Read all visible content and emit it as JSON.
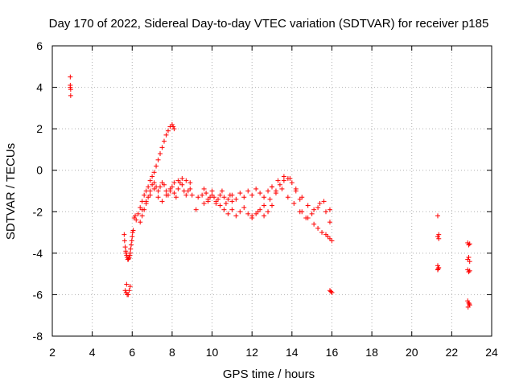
{
  "chart_data": {
    "type": "scatter",
    "title": "Day 170 of 2022, Sidereal Day-to-day VTEC variation (SDTVAR) for receiver p185",
    "xlabel": "GPS time / hours",
    "ylabel": "SDTVAR / TECUs",
    "xlim": [
      2,
      24
    ],
    "ylim": [
      -8,
      6
    ],
    "xticks": [
      2,
      4,
      6,
      8,
      10,
      12,
      14,
      16,
      18,
      20,
      22,
      24
    ],
    "yticks": [
      -8,
      -6,
      -4,
      -2,
      0,
      2,
      4,
      6
    ],
    "grid": true,
    "marker": "+",
    "color": "#ff0000",
    "series": [
      {
        "x": [
          2.9,
          2.9,
          2.9,
          2.92,
          2.92,
          5.6,
          5.62,
          5.65,
          5.68,
          5.7,
          5.72,
          5.75,
          5.78,
          5.8,
          5.82,
          5.85,
          5.88,
          5.9,
          5.92,
          5.95,
          5.98,
          6.0,
          6.02,
          6.05,
          5.7,
          5.75,
          5.8,
          5.85,
          5.9,
          5.65,
          5.72,
          6.1,
          6.15,
          6.2,
          6.3,
          6.4,
          6.5,
          6.6,
          6.7,
          6.8,
          6.9,
          7.0,
          7.1,
          7.2,
          7.3,
          7.4,
          7.5,
          7.6,
          7.7,
          7.8,
          7.9,
          8.0,
          8.05,
          8.1,
          6.4,
          6.5,
          6.6,
          6.7,
          6.8,
          6.9,
          7.0,
          7.1,
          7.2,
          7.3,
          7.4,
          7.5,
          7.6,
          7.7,
          7.8,
          7.9,
          8.0,
          8.1,
          8.2,
          8.3,
          8.4,
          8.5,
          8.6,
          8.7,
          8.8,
          8.9,
          6.5,
          6.7,
          6.9,
          7.1,
          7.3,
          7.5,
          7.7,
          7.9,
          8.1,
          8.3,
          8.5,
          8.7,
          8.9,
          9.0,
          9.2,
          9.3,
          9.5,
          9.6,
          9.7,
          9.8,
          9.9,
          10.0,
          10.1,
          10.2,
          10.3,
          10.4,
          10.5,
          10.6,
          10.7,
          10.8,
          10.9,
          11.0,
          9.6,
          9.8,
          10.0,
          10.2,
          10.4,
          10.6,
          10.8,
          11.0,
          11.2,
          11.4,
          11.6,
          11.8,
          12.0,
          12.2,
          12.4,
          12.6,
          12.8,
          13.0,
          11.0,
          11.2,
          11.4,
          11.6,
          11.8,
          12.0,
          12.2,
          12.4,
          12.6,
          12.8,
          13.0,
          13.2,
          13.4,
          13.6,
          13.8,
          14.0,
          14.2,
          14.4,
          12.0,
          12.3,
          12.6,
          12.9,
          13.2,
          13.5,
          13.8,
          14.1,
          14.4,
          14.7,
          15.0,
          15.3,
          15.6,
          15.9,
          13.0,
          13.3,
          13.6,
          13.9,
          14.2,
          14.5,
          14.8,
          15.1,
          15.4,
          15.7,
          15.9,
          14.5,
          14.8,
          15.1,
          15.3,
          15.5,
          15.7,
          15.8,
          15.9,
          16.0,
          15.9,
          15.95,
          16.0,
          21.3,
          21.35,
          21.3,
          21.35,
          21.3,
          21.35,
          21.3,
          21.32,
          22.8,
          22.85,
          22.9,
          22.8,
          22.85,
          22.9,
          22.8,
          22.85,
          22.9,
          22.8,
          22.85,
          22.9,
          22.82,
          22.88
        ],
        "y": [
          4.5,
          4.1,
          4.0,
          3.6,
          3.9,
          -3.1,
          -3.4,
          -3.7,
          -3.9,
          -4.0,
          -4.1,
          -4.2,
          -4.3,
          -4.3,
          -4.25,
          -4.2,
          -4.1,
          -4.0,
          -3.8,
          -3.6,
          -3.4,
          -3.2,
          -3.0,
          -2.9,
          -5.9,
          -6.0,
          -6.0,
          -5.8,
          -5.6,
          -5.8,
          -5.5,
          -2.3,
          -2.2,
          -2.4,
          -2.1,
          -1.8,
          -1.5,
          -1.2,
          -1.0,
          -0.8,
          -0.5,
          -0.3,
          -0.1,
          0.2,
          0.5,
          0.8,
          1.1,
          1.4,
          1.7,
          1.9,
          2.1,
          2.2,
          2.1,
          2.0,
          -2.5,
          -2.2,
          -1.9,
          -1.6,
          -1.3,
          -1.0,
          -0.7,
          -0.6,
          -0.8,
          -1.0,
          -0.8,
          -0.6,
          -0.7,
          -1.0,
          -1.2,
          -1.0,
          -0.8,
          -1.1,
          -1.3,
          -0.9,
          -0.6,
          -0.7,
          -1.0,
          -1.2,
          -1.0,
          -0.6,
          -1.9,
          -1.5,
          -1.2,
          -0.9,
          -1.3,
          -1.5,
          -1.2,
          -0.9,
          -0.6,
          -0.5,
          -0.4,
          -0.5,
          -0.9,
          -1.2,
          -1.9,
          -1.3,
          -1.2,
          -0.9,
          -1.1,
          -1.5,
          -1.3,
          -1.0,
          -1.3,
          -1.6,
          -1.4,
          -1.2,
          -1.0,
          -1.3,
          -1.6,
          -1.4,
          -1.2,
          -1.5,
          -1.6,
          -1.4,
          -1.2,
          -1.5,
          -1.7,
          -1.9,
          -2.1,
          -1.9,
          -2.2,
          -2.0,
          -1.8,
          -2.1,
          -2.3,
          -2.1,
          -1.9,
          -2.2,
          -2.0,
          -1.7,
          -1.2,
          -1.4,
          -1.1,
          -1.3,
          -1.0,
          -1.2,
          -0.9,
          -1.1,
          -1.3,
          -1.0,
          -0.8,
          -1.0,
          -0.7,
          -0.5,
          -0.4,
          -0.6,
          -1.0,
          -1.4,
          -2.2,
          -2.0,
          -1.7,
          -1.4,
          -1.1,
          -0.9,
          -1.3,
          -1.6,
          -2.0,
          -2.3,
          -2.1,
          -1.8,
          -1.5,
          -1.9,
          -0.8,
          -0.5,
          -0.3,
          -0.4,
          -0.9,
          -1.3,
          -1.7,
          -1.9,
          -1.6,
          -2.0,
          -2.5,
          -2.0,
          -2.3,
          -2.6,
          -2.8,
          -3.0,
          -3.1,
          -3.2,
          -3.3,
          -3.4,
          -5.8,
          -5.85,
          -5.9,
          -2.2,
          -3.1,
          -3.2,
          -3.3,
          -4.6,
          -4.7,
          -4.8,
          -4.75,
          -3.5,
          -3.6,
          -3.55,
          -4.3,
          -4.2,
          -4.4,
          -4.8,
          -4.9,
          -4.85,
          -6.3,
          -6.4,
          -6.5,
          -6.6,
          -6.45
        ]
      }
    ]
  }
}
